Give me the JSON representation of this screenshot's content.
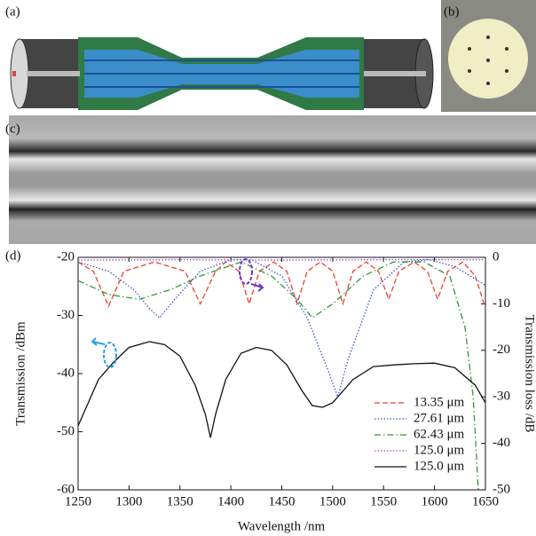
{
  "panel_labels": [
    "(a)",
    "(b)",
    "(c)"
  ],
  "chart_data": {
    "type": "line",
    "panel_label": "(d)",
    "xlabel": "Wavelength /nm",
    "ylabel": "Transmission /dBm",
    "y2label": "Transmission loss /dB",
    "xlim": [
      1250,
      1650
    ],
    "xticks": [
      1250,
      1300,
      1350,
      1400,
      1450,
      1500,
      1550,
      1600,
      1650
    ],
    "ylim": [
      -60,
      -20
    ],
    "yticks": [
      -60,
      -50,
      -40,
      -30,
      -20
    ],
    "y2lim": [
      -50,
      0
    ],
    "y2ticks": [
      -50,
      -40,
      -30,
      -20,
      -10,
      0
    ],
    "legend": "lower right",
    "series": [
      {
        "name": "13.35 μm",
        "color": "#e8432e",
        "linestyle": "dashed",
        "axis": "y2",
        "x": [
          1250,
          1265,
          1280,
          1295,
          1325,
          1355,
          1370,
          1385,
          1395,
          1408,
          1418,
          1428,
          1442,
          1455,
          1465,
          1475,
          1488,
          1500,
          1510,
          1520,
          1533,
          1545,
          1555,
          1565,
          1580,
          1593,
          1603,
          1613,
          1628,
          1640,
          1650
        ],
        "values": [
          -1,
          -3,
          -10.5,
          -3,
          -1,
          -3,
          -10,
          -3,
          -1,
          -3,
          -10,
          -3,
          -1,
          -3,
          -10,
          -3,
          -1,
          -3,
          -10,
          -3,
          -1,
          -3,
          -9,
          -3,
          -1,
          -3,
          -9,
          -3,
          -1,
          -4,
          -11
        ]
      },
      {
        "name": "27.61 μm",
        "color": "#3a55d8",
        "linestyle": "dotted",
        "axis": "y2",
        "x": [
          1250,
          1280,
          1305,
          1320,
          1330,
          1345,
          1370,
          1400,
          1420,
          1450,
          1475,
          1495,
          1505,
          1515,
          1540,
          1570,
          1595,
          1620,
          1650
        ],
        "values": [
          -1,
          -3,
          -7,
          -11,
          -13,
          -9,
          -3,
          -0.5,
          -0.5,
          -4,
          -13,
          -24,
          -30,
          -22,
          -7,
          -1,
          -0.5,
          -2,
          -6
        ]
      },
      {
        "name": "62.43 μm",
        "color": "#2d9a3a",
        "linestyle": "dashdot",
        "axis": "y2",
        "x": [
          1250,
          1280,
          1310,
          1340,
          1370,
          1410,
          1440,
          1465,
          1480,
          1500,
          1530,
          1560,
          1590,
          1615,
          1630,
          1638,
          1643
        ],
        "values": [
          -5,
          -8,
          -9,
          -7,
          -4,
          -1,
          -4,
          -9,
          -13,
          -10,
          -4,
          -1,
          -1,
          -4,
          -15,
          -30,
          -50
        ]
      },
      {
        "name": "125.0 μm",
        "color": "#a044c8",
        "linestyle": "dotted",
        "axis": "y2",
        "x": [
          1250,
          1350,
          1450,
          1550,
          1650
        ],
        "values": [
          -0.6,
          -0.5,
          -0.6,
          -0.5,
          -0.5
        ]
      },
      {
        "name": "125.0 μm",
        "color": "#111111",
        "linestyle": "solid",
        "axis": "y",
        "x": [
          1250,
          1260,
          1270,
          1285,
          1300,
          1320,
          1335,
          1350,
          1365,
          1375,
          1380,
          1385,
          1395,
          1410,
          1425,
          1440,
          1455,
          1470,
          1480,
          1490,
          1500,
          1520,
          1540,
          1560,
          1580,
          1600,
          1620,
          1640,
          1650
        ],
        "values": [
          -49,
          -45,
          -41,
          -38,
          -35.5,
          -34.5,
          -35,
          -37,
          -42,
          -47,
          -51,
          -47,
          -41,
          -36.5,
          -35.5,
          -36,
          -38.5,
          -43,
          -45.5,
          -45.8,
          -45,
          -41,
          -38.8,
          -38.5,
          -38.3,
          -38.2,
          -39,
          -42,
          -45
        ]
      }
    ]
  }
}
